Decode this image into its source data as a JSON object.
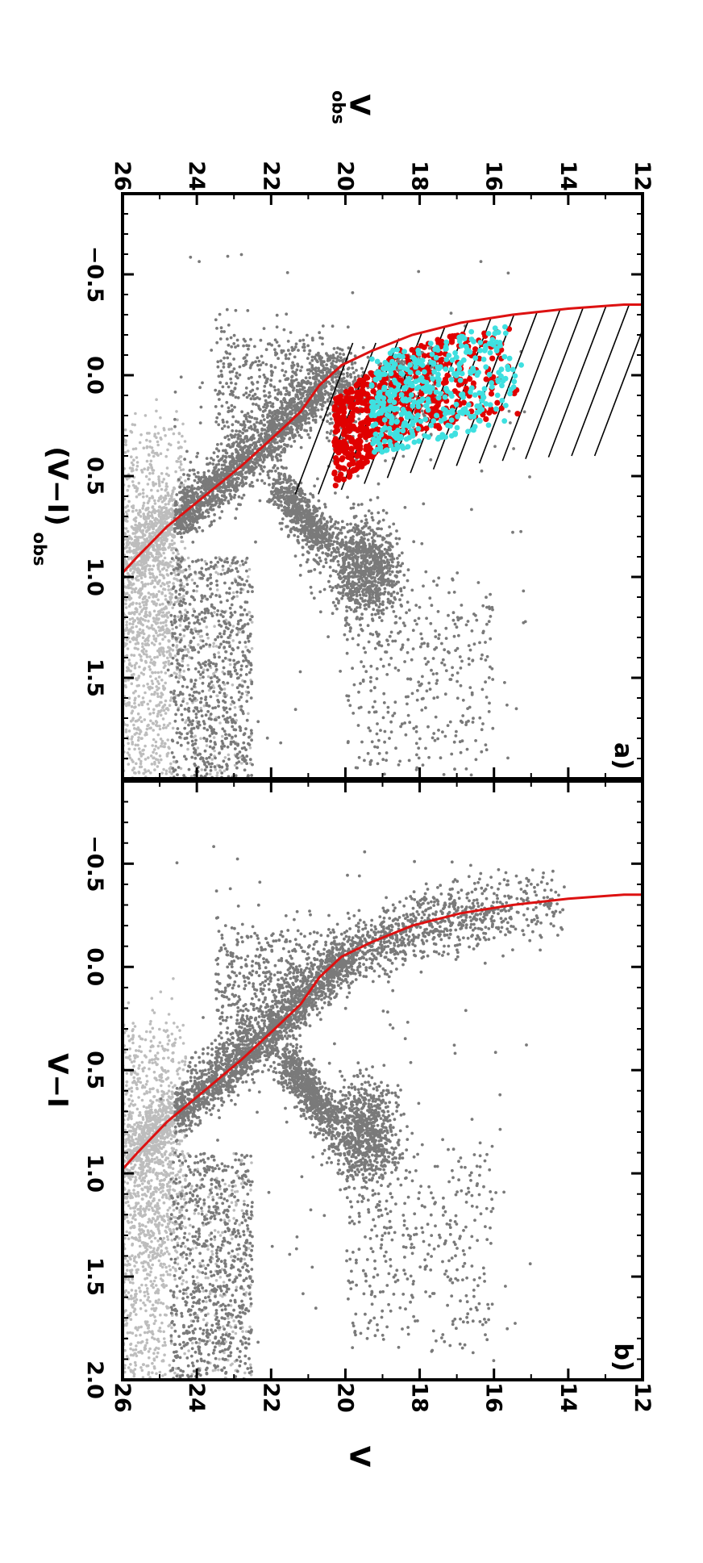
{
  "chart_data": [
    {
      "type": "scatter",
      "panel_label": "a)",
      "xlabel": "(V−I)",
      "xlabel_sub": "obs",
      "ylabel": "V",
      "ylabel_sub": "obs",
      "xlim": [
        -0.9,
        2.0
      ],
      "ylim": [
        26,
        12
      ],
      "x_ticks": [
        -0.5,
        0.0,
        0.5,
        1.0,
        1.5
      ],
      "x_tick_labels": [
        "−0.5",
        "0.0",
        "0.5",
        "1.0",
        "1.5"
      ],
      "y_ticks": [
        12,
        14,
        16,
        18,
        20,
        22,
        24,
        26
      ],
      "y_tick_labels": [
        "12",
        "14",
        "16",
        "18",
        "20",
        "22",
        "24",
        "26"
      ],
      "grid": false,
      "colors": {
        "dark_points": "#7a7a7a",
        "light_points": "#bdbdbd",
        "red_points": "#e00000",
        "cyan_points": "#3fe0e0",
        "isochrone": "#dd1111",
        "hatch": "#000000"
      },
      "isochrone": {
        "x": [
          -0.35,
          -0.35,
          -0.33,
          -0.3,
          -0.26,
          -0.2,
          -0.12,
          -0.05,
          0.05,
          0.18,
          0.3,
          0.45,
          0.6,
          0.75,
          0.9,
          0.98
        ],
        "y": [
          11.3,
          12.5,
          14.0,
          15.5,
          16.9,
          18.2,
          19.3,
          20.1,
          20.7,
          21.2,
          21.9,
          22.8,
          23.8,
          24.8,
          25.6,
          26.0
        ]
      },
      "hatch_band": {
        "upper_edge": {
          "x": [
            -0.35,
            -0.35,
            -0.33,
            -0.3,
            -0.26,
            -0.2,
            -0.16
          ],
          "y": [
            11.3,
            12.5,
            14.0,
            15.5,
            16.9,
            18.2,
            19.0
          ]
        },
        "line_offset_x": 0.75,
        "line_offset_y": 1.55,
        "line_count": 14
      },
      "regions": {
        "main_sequence": {
          "x_range": [
            -0.1,
            0.9
          ],
          "along_isochrone": true
        },
        "red_clump": {
          "center": [
            0.95,
            19.5
          ],
          "spread": [
            0.12,
            0.45
          ]
        },
        "red_giant_branch": {
          "from": [
            0.55,
            21.8
          ],
          "to": [
            0.85,
            20.5
          ]
        },
        "faint_scatter": {
          "x_range": [
            0.9,
            2.0
          ],
          "y_range": [
            22.5,
            26.0
          ]
        },
        "red_points": {
          "x_range": [
            -0.25,
            0.45
          ],
          "y_range": [
            15.0,
            20.3
          ]
        },
        "cyan_points": {
          "x_range": [
            -0.25,
            0.4
          ],
          "y_range": [
            15.2,
            19.3
          ]
        }
      }
    },
    {
      "type": "scatter",
      "panel_label": "b)",
      "xlabel": "V−I",
      "ylabel": "V",
      "xlim": [
        -0.9,
        2.0
      ],
      "ylim": [
        26,
        12
      ],
      "x_ticks": [
        -0.5,
        0.0,
        0.5,
        1.0,
        1.5,
        2.0
      ],
      "x_tick_labels": [
        "−0.5",
        "0.0",
        "0.5",
        "1.0",
        "1.5",
        "2.0"
      ],
      "y_ticks": [
        12,
        14,
        16,
        18,
        20,
        22,
        24,
        26
      ],
      "y_tick_labels": [
        "12",
        "14",
        "16",
        "18",
        "20",
        "22",
        "24",
        "26"
      ],
      "grid": false,
      "colors": {
        "dark_points": "#7a7a7a",
        "light_points": "#bdbdbd",
        "isochrone": "#dd1111"
      },
      "isochrone": {
        "x": [
          -0.35,
          -0.35,
          -0.33,
          -0.3,
          -0.26,
          -0.2,
          -0.12,
          -0.05,
          0.05,
          0.18,
          0.3,
          0.45,
          0.6,
          0.75,
          0.9,
          0.98
        ],
        "y": [
          11.3,
          12.5,
          14.0,
          15.5,
          16.9,
          18.2,
          19.3,
          20.1,
          20.7,
          21.2,
          21.9,
          22.8,
          23.8,
          24.8,
          25.6,
          26.0
        ]
      },
      "regions": {
        "upper_main_sequence": {
          "x_range": [
            -0.5,
            0.0
          ],
          "y_range": [
            14.0,
            20.5
          ]
        },
        "main_sequence": {
          "x_range": [
            -0.1,
            0.9
          ],
          "along_isochrone": true
        },
        "red_clump": {
          "center": [
            0.8,
            19.5
          ],
          "spread": [
            0.12,
            0.45
          ]
        },
        "red_giant_branch": {
          "from": [
            0.45,
            21.6
          ],
          "to": [
            0.75,
            20.4
          ]
        },
        "faint_scatter": {
          "x_range": [
            0.9,
            2.0
          ],
          "y_range": [
            22.5,
            26.0
          ]
        }
      }
    }
  ]
}
